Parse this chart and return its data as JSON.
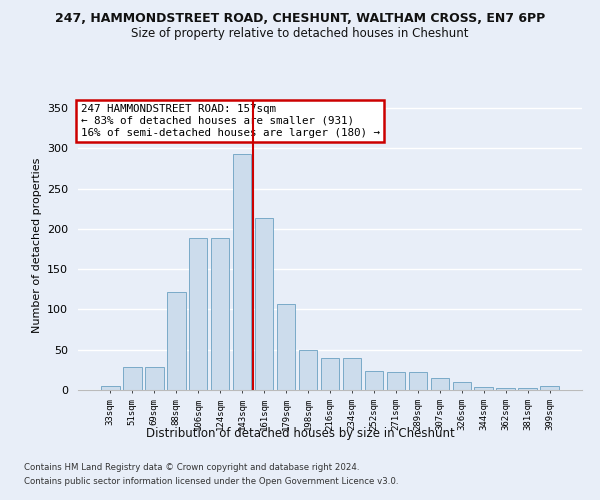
{
  "title1": "247, HAMMONDSTREET ROAD, CHESHUNT, WALTHAM CROSS, EN7 6PP",
  "title2": "Size of property relative to detached houses in Cheshunt",
  "xlabel": "Distribution of detached houses by size in Cheshunt",
  "ylabel": "Number of detached properties",
  "categories": [
    "33sqm",
    "51sqm",
    "69sqm",
    "88sqm",
    "106sqm",
    "124sqm",
    "143sqm",
    "161sqm",
    "179sqm",
    "198sqm",
    "216sqm",
    "234sqm",
    "252sqm",
    "271sqm",
    "289sqm",
    "307sqm",
    "326sqm",
    "344sqm",
    "362sqm",
    "381sqm",
    "399sqm"
  ],
  "values": [
    5,
    29,
    29,
    122,
    189,
    189,
    293,
    213,
    107,
    50,
    40,
    40,
    23,
    22,
    22,
    15,
    10,
    4,
    3,
    2,
    5
  ],
  "bar_color": "#ccdcec",
  "bar_edge_color": "#7aaac8",
  "ref_line_color": "#cc0000",
  "annotation_line1": "247 HAMMONDSTREET ROAD: 157sqm",
  "annotation_line2": "← 83% of detached houses are smaller (931)",
  "annotation_line3": "16% of semi-detached houses are larger (180) →",
  "ylim": [
    0,
    360
  ],
  "yticks": [
    0,
    50,
    100,
    150,
    200,
    250,
    300,
    350
  ],
  "footer1": "Contains HM Land Registry data © Crown copyright and database right 2024.",
  "footer2": "Contains public sector information licensed under the Open Government Licence v3.0.",
  "bg_color": "#e8eef8",
  "plot_bg_color": "#e8eef8",
  "annotation_box_color": "#ffffff",
  "annotation_box_edge": "#cc0000"
}
